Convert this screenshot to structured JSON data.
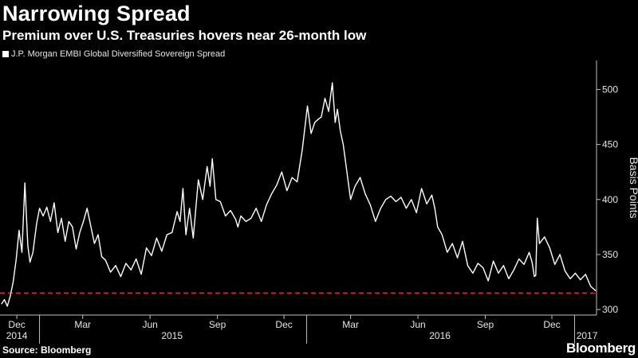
{
  "header": {
    "title": "Narrowing Spread",
    "subtitle": "Premium over U.S. Treasuries hovers near 26-month low"
  },
  "footer": {
    "source": "Source: Bloomberg",
    "brand": "Bloomberg"
  },
  "colors": {
    "background": "#000000",
    "line": "#ffffff",
    "reference": "#d6304a"
  },
  "chart_data": {
    "type": "line",
    "title": "Narrowing Spread",
    "subtitle": "Premium over U.S. Treasuries hovers near 26-month low",
    "ylabel": "Basis Points",
    "xlabel": "",
    "ylim": [
      295,
      522
    ],
    "yticks": [
      300,
      350,
      400,
      450,
      500
    ],
    "grid": false,
    "legend_position": "top-left",
    "x_month_ticks": [
      "Dec",
      "Mar",
      "Jun",
      "Sep",
      "Dec",
      "Mar",
      "Jun",
      "Sep",
      "Dec"
    ],
    "x_year_labels": [
      "2014",
      "2015",
      "2016",
      "2017"
    ],
    "reference_line": {
      "value": 315,
      "style": "dashed"
    },
    "series": [
      {
        "name": "J.P. Morgan EMBI Global Diversified Sovereign Spread",
        "x": [
          "2014-11-10",
          "2014-11-14",
          "2014-11-18",
          "2014-11-22",
          "2014-11-26",
          "2014-11-30",
          "2014-12-04",
          "2014-12-08",
          "2014-12-12",
          "2014-12-16",
          "2014-12-19",
          "2014-12-23",
          "2014-12-28",
          "2015-01-01",
          "2015-01-06",
          "2015-01-11",
          "2015-01-16",
          "2015-01-21",
          "2015-01-26",
          "2015-01-31",
          "2015-02-05",
          "2015-02-10",
          "2015-02-15",
          "2015-02-20",
          "2015-02-25",
          "2015-03-02",
          "2015-03-07",
          "2015-03-12",
          "2015-03-17",
          "2015-03-22",
          "2015-03-27",
          "2015-04-01",
          "2015-04-08",
          "2015-04-15",
          "2015-04-22",
          "2015-04-29",
          "2015-05-06",
          "2015-05-13",
          "2015-05-20",
          "2015-05-27",
          "2015-06-03",
          "2015-06-10",
          "2015-06-17",
          "2015-06-24",
          "2015-07-01",
          "2015-07-08",
          "2015-07-12",
          "2015-07-16",
          "2015-07-20",
          "2015-07-25",
          "2015-07-30",
          "2015-08-06",
          "2015-08-12",
          "2015-08-18",
          "2015-08-22",
          "2015-08-25",
          "2015-08-30",
          "2015-09-05",
          "2015-09-12",
          "2015-09-19",
          "2015-09-26",
          "2015-09-29",
          "2015-10-03",
          "2015-10-10",
          "2015-10-17",
          "2015-10-24",
          "2015-10-31",
          "2015-11-07",
          "2015-11-14",
          "2015-11-21",
          "2015-11-28",
          "2015-12-05",
          "2015-12-12",
          "2015-12-19",
          "2015-12-26",
          "2016-01-02",
          "2016-01-07",
          "2016-01-12",
          "2016-01-17",
          "2016-01-21",
          "2016-01-26",
          "2016-01-31",
          "2016-02-05",
          "2016-02-09",
          "2016-02-12",
          "2016-02-16",
          "2016-02-20",
          "2016-02-25",
          "2016-03-01",
          "2016-03-07",
          "2016-03-14",
          "2016-03-21",
          "2016-03-28",
          "2016-04-04",
          "2016-04-11",
          "2016-04-18",
          "2016-04-25",
          "2016-05-02",
          "2016-05-09",
          "2016-05-16",
          "2016-05-23",
          "2016-05-30",
          "2016-06-06",
          "2016-06-13",
          "2016-06-20",
          "2016-06-24",
          "2016-06-28",
          "2016-07-04",
          "2016-07-11",
          "2016-07-18",
          "2016-07-25",
          "2016-08-01",
          "2016-08-08",
          "2016-08-15",
          "2016-08-22",
          "2016-08-29",
          "2016-09-05",
          "2016-09-12",
          "2016-09-19",
          "2016-09-26",
          "2016-10-03",
          "2016-10-10",
          "2016-10-17",
          "2016-10-24",
          "2016-10-31",
          "2016-11-04",
          "2016-11-07",
          "2016-11-09",
          "2016-11-11",
          "2016-11-14",
          "2016-11-21",
          "2016-11-28",
          "2016-12-05",
          "2016-12-12",
          "2016-12-19",
          "2016-12-26",
          "2017-01-02",
          "2017-01-09",
          "2017-01-16",
          "2017-01-23",
          "2017-01-30"
        ],
        "values": [
          305,
          309,
          303,
          312,
          325,
          345,
          372,
          352,
          415,
          358,
          343,
          352,
          378,
          392,
          385,
          393,
          380,
          397,
          370,
          383,
          362,
          380,
          375,
          355,
          370,
          380,
          392,
          376,
          360,
          368,
          348,
          345,
          334,
          340,
          330,
          342,
          336,
          346,
          332,
          356,
          349,
          365,
          353,
          368,
          370,
          389,
          380,
          410,
          368,
          392,
          365,
          418,
          400,
          430,
          412,
          437,
          400,
          398,
          385,
          390,
          382,
          375,
          385,
          380,
          383,
          392,
          380,
          395,
          405,
          413,
          425,
          408,
          420,
          416,
          445,
          485,
          460,
          470,
          473,
          475,
          492,
          480,
          506,
          470,
          482,
          462,
          450,
          425,
          400,
          412,
          420,
          405,
          395,
          380,
          392,
          400,
          403,
          398,
          402,
          392,
          400,
          388,
          410,
          396,
          404,
          392,
          375,
          368,
          352,
          360,
          347,
          362,
          340,
          333,
          342,
          338,
          326,
          344,
          333,
          340,
          328,
          336,
          346,
          341,
          352,
          343,
          330,
          331,
          383,
          360,
          366,
          356,
          341,
          350,
          335,
          328,
          333,
          327,
          332,
          321,
          317
        ]
      }
    ]
  }
}
